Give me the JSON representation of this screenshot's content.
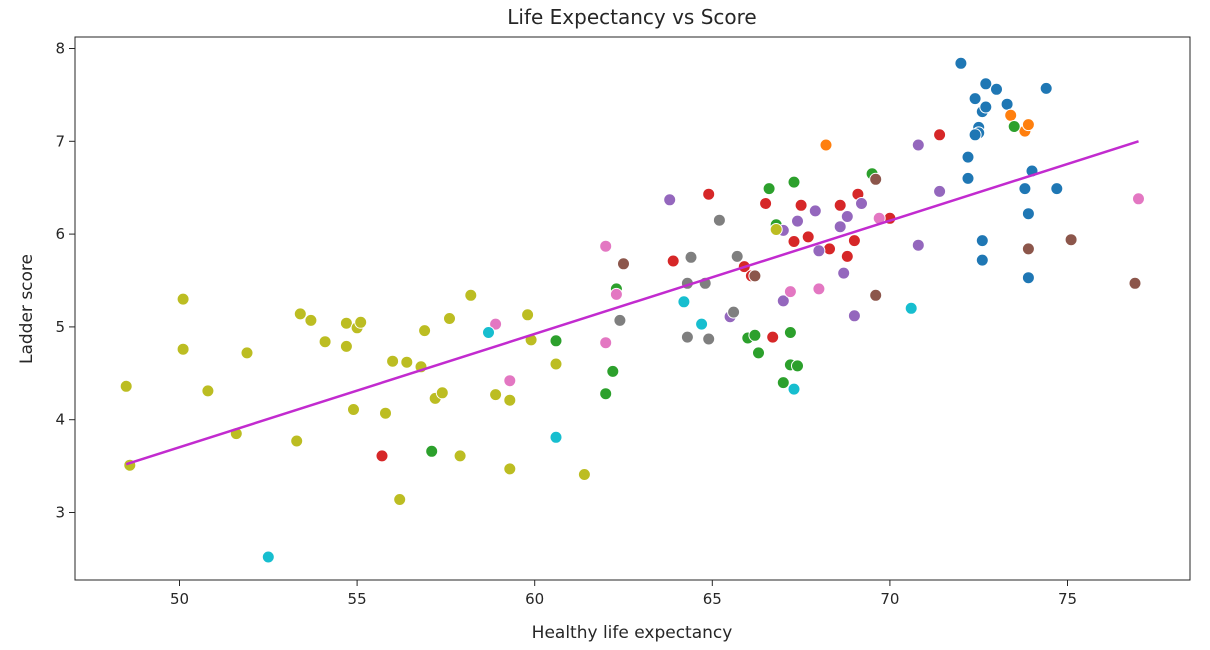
{
  "colors": {
    "blue": "#1f77b4",
    "orange": "#ff7f0e",
    "green": "#2ca02c",
    "red": "#d62728",
    "purple": "#9467bd",
    "brown": "#8c564b",
    "pink": "#e377c2",
    "gray": "#7f7f7f",
    "olive": "#bcbd22",
    "cyan": "#17becf",
    "trend": "#c22bcf"
  },
  "chart_data": {
    "type": "scatter",
    "title": "Life Expectancy vs Score",
    "xlabel": "Healthy life expectancy",
    "ylabel": "Ladder score",
    "xlim": [
      47,
      85.5
    ],
    "ylim": [
      2.3,
      8.1
    ],
    "xticks": [
      50,
      55,
      60,
      65,
      70,
      75
    ],
    "yticks": [
      3,
      4,
      5,
      6,
      7,
      8
    ],
    "grid": false,
    "legend": "none",
    "trendline": {
      "x": [
        48.5,
        77.0
      ],
      "y": [
        3.52,
        7.0
      ]
    },
    "series": [
      {
        "color": "blue",
        "x": [
          72.0,
          72.4,
          72.7,
          73.0,
          74.4,
          73.3,
          72.6,
          72.7,
          72.5,
          72.5,
          72.4,
          73.4,
          72.2,
          72.2,
          74.0,
          73.8,
          74.7,
          73.9,
          72.6,
          72.6,
          73.9
        ],
        "y": [
          7.84,
          7.46,
          7.62,
          7.56,
          7.57,
          7.4,
          7.32,
          7.37,
          7.15,
          7.09,
          7.07,
          7.28,
          6.83,
          6.6,
          6.68,
          6.49,
          6.49,
          6.22,
          5.93,
          5.72,
          5.53
        ]
      },
      {
        "color": "orange",
        "x": [
          68.2,
          73.4,
          73.8,
          73.9
        ],
        "y": [
          6.96,
          7.28,
          7.11,
          7.18
        ]
      },
      {
        "color": "green",
        "x": [
          69.5,
          73.5,
          66.6,
          67.3,
          66.8,
          62.3,
          60.6,
          66.0,
          66.2,
          67.2,
          66.3,
          62.2,
          67.0,
          67.2,
          67.4,
          62.0,
          57.1
        ],
        "y": [
          6.65,
          7.16,
          6.49,
          6.56,
          6.1,
          5.41,
          4.85,
          4.88,
          4.91,
          4.94,
          4.72,
          4.52,
          4.4,
          4.59,
          4.58,
          4.28,
          3.66
        ]
      },
      {
        "color": "red",
        "x": [
          71.4,
          64.9,
          66.5,
          67.5,
          68.6,
          69.1,
          63.9,
          65.9,
          66.1,
          67.3,
          67.7,
          68.3,
          68.8,
          69.0,
          70.0,
          66.7,
          55.7
        ],
        "y": [
          7.07,
          6.43,
          6.33,
          6.31,
          6.31,
          6.43,
          5.71,
          5.65,
          5.55,
          5.92,
          5.97,
          5.84,
          5.76,
          5.93,
          6.17,
          4.89,
          3.61
        ]
      },
      {
        "color": "purple",
        "x": [
          70.8,
          71.4,
          63.8,
          69.2,
          67.4,
          67.9,
          68.6,
          68.8,
          67.0,
          68.0,
          70.8,
          68.7,
          67.0,
          65.5,
          69.0
        ],
        "y": [
          6.96,
          6.46,
          6.37,
          6.33,
          6.14,
          6.25,
          6.08,
          6.19,
          6.04,
          5.82,
          5.88,
          5.58,
          5.28,
          5.11,
          5.12
        ]
      },
      {
        "color": "brown",
        "x": [
          69.6,
          75.1,
          73.9,
          69.6,
          76.9,
          62.5,
          66.2
        ],
        "y": [
          6.59,
          5.94,
          5.84,
          5.34,
          5.47,
          5.68,
          5.55
        ]
      },
      {
        "color": "pink",
        "x": [
          69.7,
          77.0,
          62.0,
          68.0,
          67.2,
          62.3,
          58.9,
          62.0,
          59.3
        ],
        "y": [
          6.17,
          6.38,
          5.87,
          5.41,
          5.38,
          5.35,
          5.03,
          4.83,
          4.42
        ]
      },
      {
        "color": "gray",
        "x": [
          65.2,
          65.7,
          64.4,
          64.3,
          64.8,
          62.4,
          65.6,
          64.9,
          64.3
        ],
        "y": [
          6.15,
          5.76,
          5.75,
          5.47,
          5.47,
          5.07,
          5.16,
          4.87,
          4.89
        ]
      },
      {
        "color": "olive",
        "x": [
          66.8,
          48.5,
          50.1,
          50.1,
          50.8,
          51.6,
          51.9,
          53.4,
          53.7,
          54.1,
          54.7,
          55.0,
          55.1,
          54.7,
          56.0,
          56.4,
          56.8,
          56.9,
          57.6,
          58.2,
          59.8,
          59.9,
          54.9,
          55.8,
          57.2,
          57.4,
          58.9,
          59.3,
          60.6,
          53.3,
          57.9,
          59.3,
          61.4,
          56.2,
          48.6
        ],
        "y": [
          6.05,
          4.36,
          5.3,
          4.76,
          4.31,
          3.85,
          4.72,
          5.14,
          5.07,
          4.84,
          5.04,
          4.99,
          5.05,
          4.79,
          4.63,
          4.62,
          4.57,
          4.96,
          5.09,
          5.34,
          5.13,
          4.86,
          4.11,
          4.07,
          4.23,
          4.29,
          4.27,
          4.21,
          4.6,
          3.77,
          3.61,
          3.47,
          3.41,
          3.14,
          3.51
        ]
      },
      {
        "color": "cyan",
        "x": [
          58.7,
          64.2,
          64.7,
          70.6,
          60.6,
          67.3,
          52.5
        ],
        "y": [
          4.94,
          5.27,
          5.03,
          5.2,
          3.81,
          4.33,
          2.52
        ]
      }
    ]
  }
}
